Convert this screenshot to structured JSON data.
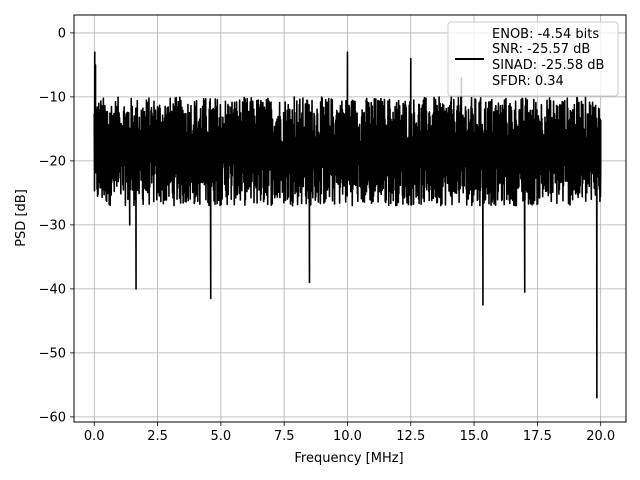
{
  "chart_data": {
    "type": "line",
    "title": "",
    "xlabel": "Frequency [MHz]",
    "ylabel": "PSD [dB]",
    "xlim": [
      -0.8,
      21.0
    ],
    "ylim": [
      -60.8,
      2.8
    ],
    "xticks": [
      0.0,
      2.5,
      5.0,
      7.5,
      10.0,
      12.5,
      15.0,
      17.5,
      20.0
    ],
    "xtick_labels": [
      "0.0",
      "2.5",
      "5.0",
      "7.5",
      "10.0",
      "12.5",
      "15.0",
      "17.5",
      "20.0"
    ],
    "yticks": [
      0,
      -10,
      -20,
      -30,
      -40,
      -50,
      -60
    ],
    "ytick_labels": [
      "0",
      "−10",
      "−20",
      "−30",
      "−40",
      "−50",
      "−60"
    ],
    "grid": true,
    "legend_position": "top-right",
    "legend_entries": [
      "ENOB: -4.54 bits",
      "SNR: -25.57 dB",
      "SINAD: -25.58 dB",
      "SFDR: 0.34"
    ],
    "series": [
      {
        "color": "#000000",
        "band": {
          "typical_high": -10,
          "typical_low": -27
        },
        "x": [
          0.0,
          0.02,
          0.05,
          0.1,
          0.15,
          0.25,
          0.6,
          1.0,
          1.4,
          1.65,
          2.0,
          3.0,
          4.0,
          4.6,
          5.0,
          6.0,
          7.0,
          7.9,
          8.5,
          9.0,
          9.8,
          10.0,
          11.0,
          12.0,
          12.5,
          13.5,
          14.5,
          15.35,
          16.0,
          16.8,
          17.0,
          17.8,
          18.5,
          19.0,
          19.65,
          19.85,
          20.0
        ],
        "y": [
          -15,
          -3,
          -5,
          -13,
          -22,
          -13,
          -20,
          -18,
          -30,
          -40,
          -22,
          -15,
          -20,
          -41.5,
          -18,
          -15,
          -12,
          -10,
          -39,
          -17,
          -12,
          -3,
          -18,
          -12,
          -4,
          -18,
          -7,
          -42.5,
          -15,
          -12,
          -40.5,
          -18,
          -13,
          -21,
          -22,
          -57,
          -21
        ]
      }
    ]
  }
}
